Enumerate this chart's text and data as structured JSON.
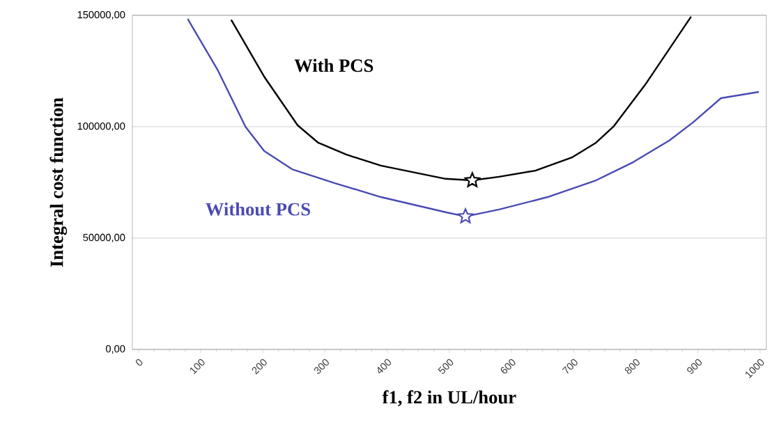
{
  "chart_data": {
    "type": "line",
    "xlabel": "f1, f2 in UL/hour",
    "ylabel": "Integral cost function",
    "xlim": [
      -10,
      1010
    ],
    "ylim": [
      0,
      150000
    ],
    "xticks": [
      0,
      100,
      200,
      300,
      400,
      500,
      600,
      700,
      800,
      900,
      1000
    ],
    "yticks": [
      {
        "value": 0,
        "label": "0,00"
      },
      {
        "value": 50000,
        "label": "50000,00"
      },
      {
        "value": 100000,
        "label": "100000,00"
      },
      {
        "value": 150000,
        "label": "150000,00"
      }
    ],
    "grid": "y",
    "legend": false,
    "marker": "none",
    "line_style": "solid",
    "series": [
      {
        "name": "With PCS",
        "color": "#000000",
        "x": [
          149,
          202,
          256,
          289,
          334,
          390,
          494,
          537,
          580,
          639,
          698,
          736,
          764,
          815,
          889
        ],
        "values": [
          148000,
          122500,
          100600,
          92800,
          87500,
          82500,
          76600,
          75900,
          77500,
          80300,
          86300,
          92800,
          100000,
          118800,
          149400
        ]
      },
      {
        "name": "Without PCS",
        "color": "#4a4ab4",
        "x": [
          79,
          127,
          172,
          202,
          247,
          315,
          390,
          494,
          526,
          580,
          658,
          736,
          796,
          854,
          892,
          937,
          998
        ],
        "values": [
          148400,
          125600,
          100000,
          89100,
          80900,
          74700,
          68400,
          61600,
          59700,
          62800,
          68400,
          75900,
          84100,
          93800,
          101900,
          112800,
          115600
        ]
      },
      {
        "type": "scatter",
        "marker": "star",
        "color": "#000000",
        "x": [
          537
        ],
        "values": [
          75900
        ]
      },
      {
        "type": "scatter",
        "marker": "star",
        "color": "#4a4ab4",
        "x": [
          526
        ],
        "values": [
          59700
        ]
      }
    ]
  }
}
